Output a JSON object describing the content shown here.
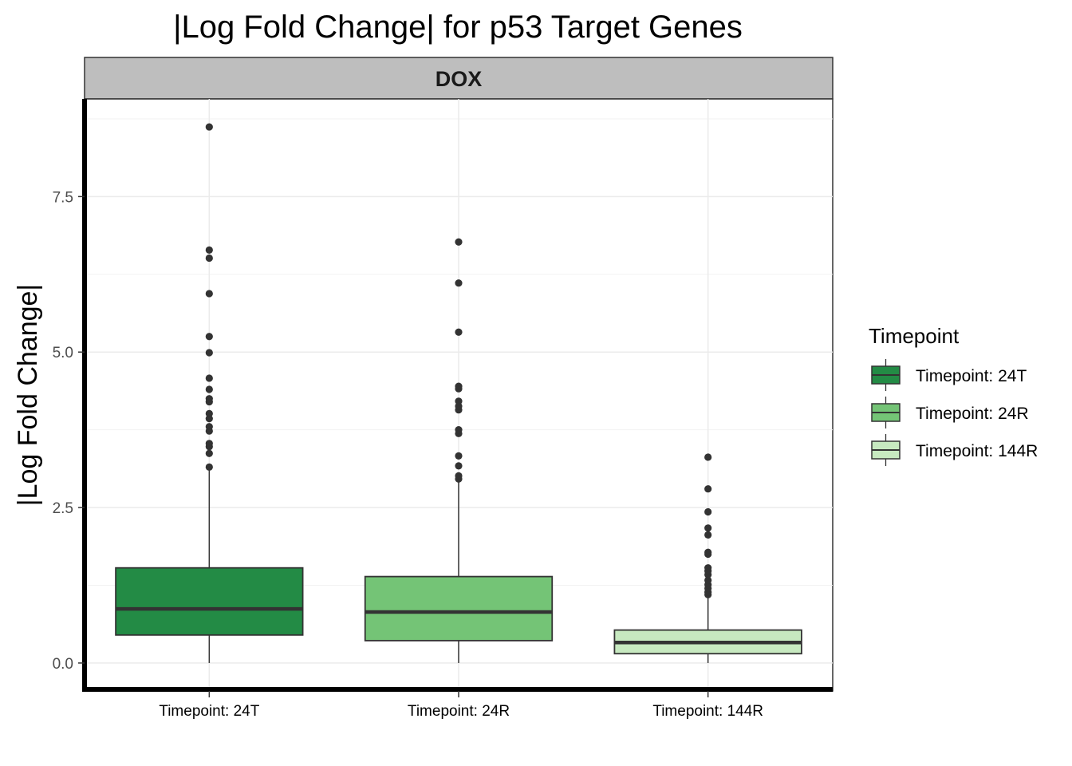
{
  "chart_data": {
    "type": "boxplot",
    "title": "|Log Fold Change| for p53 Target Genes",
    "facet": "DOX",
    "ylabel": "|Log Fold Change|",
    "xlabel": "",
    "ylim": [
      -0.45,
      9.07
    ],
    "yticks": [
      0.0,
      2.5,
      5.0,
      7.5
    ],
    "ytick_labels": [
      "0.0",
      "2.5",
      "5.0",
      "7.5"
    ],
    "grid": true,
    "legend": {
      "title": "Timepoint",
      "position": "right"
    },
    "categories": [
      "Timepoint: 24T",
      "Timepoint: 24R",
      "Timepoint: 144R"
    ],
    "series": [
      {
        "name": "Timepoint: 24T",
        "color": "#238b45",
        "min": 0.0,
        "q1": 0.45,
        "median": 0.87,
        "q3": 1.53,
        "whisker_high": 3.1,
        "outliers": [
          3.15,
          3.37,
          3.48,
          3.53,
          3.73,
          3.8,
          3.93,
          4.01,
          4.2,
          4.25,
          4.4,
          4.58,
          4.99,
          5.25,
          5.94,
          6.51,
          6.64,
          8.62
        ]
      },
      {
        "name": "Timepoint: 24R",
        "color": "#74c476",
        "min": 0.0,
        "q1": 0.36,
        "median": 0.82,
        "q3": 1.39,
        "whisker_high": 2.93,
        "outliers": [
          2.96,
          3.01,
          3.17,
          3.33,
          3.69,
          3.75,
          4.07,
          4.13,
          4.21,
          4.41,
          4.45,
          5.32,
          6.11,
          6.77
        ]
      },
      {
        "name": "Timepoint: 144R",
        "color": "#c7e9c0",
        "min": 0.0,
        "q1": 0.15,
        "median": 0.33,
        "q3": 0.53,
        "whisker_high": 1.08,
        "outliers": [
          1.1,
          1.14,
          1.2,
          1.26,
          1.33,
          1.42,
          1.48,
          1.53,
          1.75,
          1.78,
          2.06,
          2.17,
          2.43,
          2.8,
          3.31
        ]
      }
    ]
  }
}
